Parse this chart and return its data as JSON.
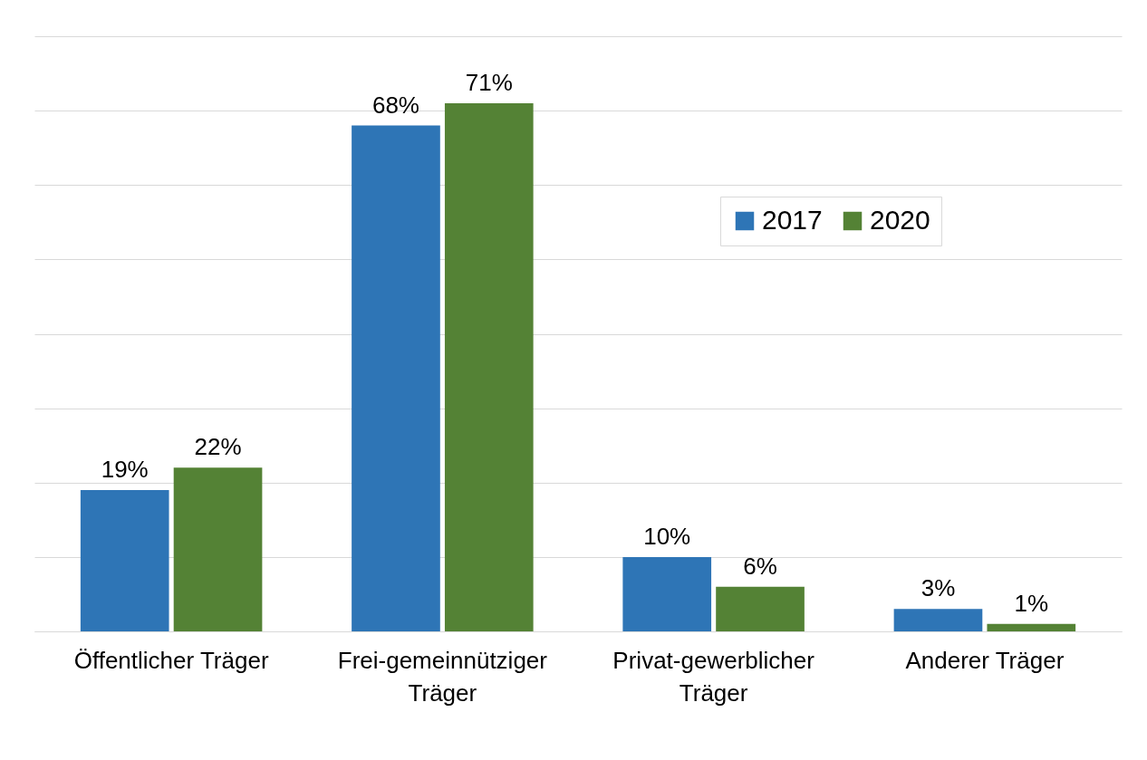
{
  "chart_data": {
    "type": "bar",
    "categories": [
      "Öffentlicher Träger",
      "Frei-gemeinnütziger Träger",
      "Privat-gewerblicher Träger",
      "Anderer Träger"
    ],
    "series": [
      {
        "name": "2017",
        "color": "#2e75b6",
        "values": [
          19,
          68,
          10,
          3
        ],
        "value_labels": [
          "19%",
          "68%",
          "10%",
          "3%"
        ]
      },
      {
        "name": "2020",
        "color": "#548235",
        "values": [
          22,
          71,
          6,
          1
        ],
        "value_labels": [
          "22%",
          "71%",
          "6%",
          "1%"
        ]
      }
    ],
    "ylim": [
      0,
      80
    ],
    "yticks": [
      {
        "value": 0,
        "label": null
      },
      {
        "value": 10,
        "label": null
      },
      {
        "value": 20,
        "label": null
      },
      {
        "value": 30,
        "label": null
      },
      {
        "value": 40,
        "label": null
      },
      {
        "value": 50,
        "label": null
      },
      {
        "value": 60,
        "label": null
      },
      {
        "value": 70,
        "label": null
      },
      {
        "value": 80,
        "label": null
      }
    ],
    "tick_labels": "x",
    "grid": "y",
    "legend": "top right"
  }
}
